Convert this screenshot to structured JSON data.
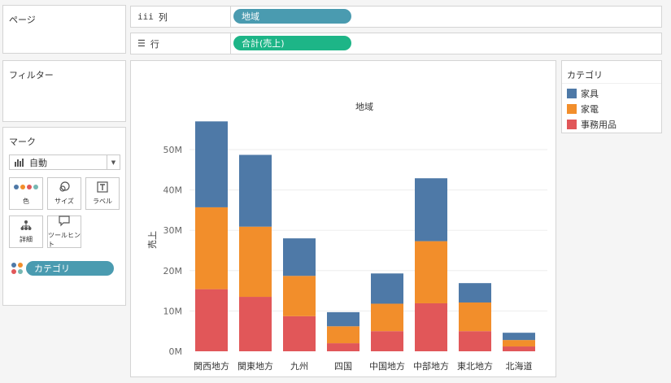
{
  "pages": {
    "title": "ページ"
  },
  "filters": {
    "title": "フィルター"
  },
  "marks": {
    "title": "マーク",
    "mark_type": "自動",
    "buttons": {
      "color": "色",
      "size": "サイズ",
      "label": "ラベル",
      "detail": "詳細",
      "tooltip": "ツールヒント"
    },
    "color_field": "カテゴリ"
  },
  "shelves": {
    "columns": {
      "label": "列",
      "icon": "columns-icon",
      "pill": "地域"
    },
    "rows": {
      "label": "行",
      "icon": "rows-icon",
      "pill": "合計(売上)"
    }
  },
  "legend": {
    "title": "カテゴリ",
    "items": [
      {
        "label": "家具",
        "color": "#4e79a7"
      },
      {
        "label": "家電",
        "color": "#f28e2b"
      },
      {
        "label": "事務用品",
        "color": "#e15759"
      }
    ]
  },
  "chart_data": {
    "type": "bar",
    "stacked": true,
    "title": "地域",
    "ylabel": "売上",
    "ylim": [
      0,
      60000000
    ],
    "yticks": [
      0,
      10000000,
      20000000,
      30000000,
      40000000,
      50000000
    ],
    "ytick_labels": [
      "0M",
      "10M",
      "20M",
      "30M",
      "40M",
      "50M"
    ],
    "categories": [
      "関西地方",
      "関東地方",
      "九州",
      "四国",
      "中国地方",
      "中部地方",
      "東北地方",
      "北海道"
    ],
    "series": [
      {
        "name": "事務用品",
        "color": "#e15759",
        "values": [
          15400000,
          13500000,
          8700000,
          2000000,
          5000000,
          11900000,
          5000000,
          1200000
        ]
      },
      {
        "name": "家電",
        "color": "#f28e2b",
        "values": [
          20300000,
          17400000,
          10000000,
          4200000,
          6800000,
          15400000,
          7100000,
          1600000
        ]
      },
      {
        "name": "家具",
        "color": "#4e79a7",
        "values": [
          21300000,
          17800000,
          9300000,
          3500000,
          7500000,
          15600000,
          4800000,
          1800000
        ]
      }
    ],
    "grid": true
  }
}
